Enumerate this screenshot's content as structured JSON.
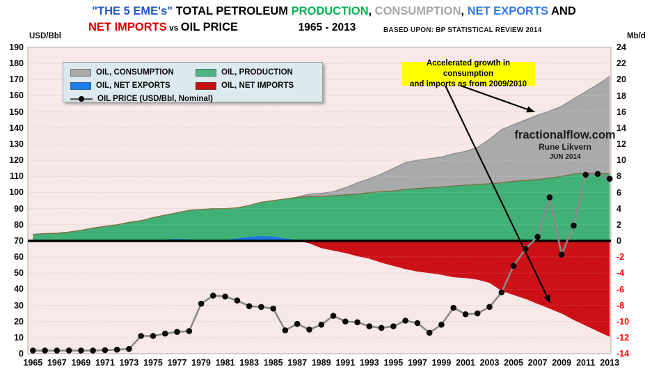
{
  "title": {
    "line1_segments": [
      {
        "text": "\"THE 5 EME's\" ",
        "color": "#2457C5"
      },
      {
        "text": "TOTAL PETROLEUM ",
        "color": "#000000"
      },
      {
        "text": "PRODUCTION",
        "color": "#00B050"
      },
      {
        "text": ", ",
        "color": "#000000"
      },
      {
        "text": "CONSUMPTION",
        "color": "#A6A6A6"
      },
      {
        "text": ", ",
        "color": "#000000"
      },
      {
        "text": "NET EXPORTS",
        "color": "#2F7BEA"
      },
      {
        "text": " AND",
        "color": "#000000"
      }
    ],
    "line2_segments": [
      {
        "text": "NET IMPORTS",
        "color": "#D50000"
      },
      {
        "text": " vs ",
        "color": "#000000",
        "small": true
      },
      {
        "text": "OIL PRICE",
        "color": "#000000"
      }
    ],
    "period": "1965 - 2013",
    "source": "BASED UPON: BP STATISTICAL REVIEW  2014"
  },
  "axes": {
    "left_unit": "USD/Bbl",
    "right_unit": "Mb/d",
    "left_ticks": [
      190,
      180,
      170,
      160,
      150,
      140,
      130,
      120,
      110,
      100,
      90,
      80,
      70,
      60,
      50,
      40,
      30,
      20,
      10,
      0
    ],
    "right_ticks": [
      24,
      22,
      20,
      18,
      16,
      14,
      12,
      10,
      8,
      6,
      4,
      2,
      0,
      -2,
      -4,
      -6,
      -8,
      -10,
      -12,
      -14
    ],
    "x_ticks": [
      1965,
      1967,
      1969,
      1971,
      1973,
      1975,
      1977,
      1979,
      1981,
      1983,
      1985,
      1987,
      1989,
      1991,
      1993,
      1995,
      1997,
      1999,
      2001,
      2003,
      2005,
      2007,
      2009,
      2011,
      2013
    ]
  },
  "legend": {
    "items": [
      {
        "label": "OIL, CONSUMPTION",
        "swatch": "#ABABAB",
        "type": "area",
        "key": "consumption"
      },
      {
        "label": "OIL, PRODUCTION",
        "swatch": "#4CB583",
        "type": "area",
        "key": "production"
      },
      {
        "label": "OIL, NET EXPORTS",
        "swatch": "#1F7FE8",
        "type": "area",
        "key": "net-exports"
      },
      {
        "label": "OIL, NET IMPORTS",
        "swatch": "#C50F0F",
        "type": "area",
        "key": "net-imports"
      },
      {
        "label": "OIL PRICE (USD/Bbl, Nominal)",
        "swatch": "#000000",
        "type": "line",
        "key": "oil-price"
      }
    ]
  },
  "annotation": {
    "line1": "Accelerated growth in consumption",
    "line2": "and imports as from 2009/2010",
    "bg": "#FFFF00"
  },
  "watermark": {
    "site": "fractionalflow.com",
    "author": "Rune Likvern",
    "date": "JUN 2014"
  },
  "chart_data": {
    "type": "combo-area-line",
    "plot_bg": "#F8E8E8",
    "grid": "on",
    "legend_position": "top-left-inside",
    "x_range": [
      1965,
      2013
    ],
    "left_axis": {
      "label": "USD/Bbl",
      "min": 0,
      "max": 190,
      "step": 10
    },
    "right_axis": {
      "label": "Mb/d",
      "min": -14,
      "max": 24,
      "step": 2
    },
    "x": [
      1965,
      1966,
      1967,
      1968,
      1969,
      1970,
      1971,
      1972,
      1973,
      1974,
      1975,
      1976,
      1977,
      1978,
      1979,
      1980,
      1981,
      1982,
      1983,
      1984,
      1985,
      1986,
      1987,
      1988,
      1989,
      1990,
      1991,
      1992,
      1993,
      1994,
      1995,
      1996,
      1997,
      1998,
      1999,
      2000,
      2001,
      2002,
      2003,
      2004,
      2005,
      2006,
      2007,
      2008,
      2009,
      2010,
      2011,
      2012,
      2013
    ],
    "series": [
      {
        "name": "OIL, CONSUMPTION",
        "type": "area",
        "axis": "right",
        "unit": "Mb/d",
        "color": "#A9AAAC",
        "edge": "#8D8D8D",
        "values": [
          0.8,
          0.9,
          0.95,
          1.1,
          1.3,
          1.6,
          1.8,
          2.0,
          2.3,
          2.5,
          2.85,
          3.05,
          3.25,
          3.6,
          3.85,
          4.0,
          3.9,
          3.8,
          3.9,
          4.2,
          4.45,
          4.9,
          5.45,
          5.8,
          5.9,
          6.1,
          6.6,
          7.2,
          7.7,
          8.3,
          9.0,
          9.7,
          10.0,
          10.2,
          10.4,
          10.8,
          11.1,
          11.6,
          12.6,
          13.8,
          14.4,
          15.0,
          15.6,
          16.1,
          16.7,
          17.6,
          18.5,
          19.4,
          20.4
        ]
      },
      {
        "name": "OIL, PRODUCTION",
        "type": "area",
        "axis": "right",
        "unit": "Mb/d",
        "color": "#41B077",
        "edge": "#7B6F42",
        "values": [
          0.8,
          0.9,
          0.95,
          1.1,
          1.3,
          1.6,
          1.8,
          2.0,
          2.3,
          2.5,
          2.9,
          3.2,
          3.5,
          3.8,
          3.9,
          4.0,
          4.0,
          4.1,
          4.4,
          4.8,
          5.0,
          5.2,
          5.4,
          5.5,
          5.5,
          5.6,
          5.7,
          5.8,
          6.0,
          6.1,
          6.2,
          6.4,
          6.5,
          6.6,
          6.7,
          6.8,
          6.9,
          7.0,
          7.1,
          7.2,
          7.4,
          7.5,
          7.6,
          7.8,
          8.0,
          8.3,
          8.4,
          8.4,
          8.3
        ]
      },
      {
        "name": "OIL, NET EXPORTS",
        "type": "area",
        "axis": "right",
        "unit": "Mb/d",
        "color": "#1E78E8",
        "values": [
          0,
          0,
          0,
          0,
          0,
          0,
          0,
          0,
          0,
          0,
          0.05,
          0.15,
          0.25,
          0.2,
          0.05,
          0,
          0.1,
          0.3,
          0.5,
          0.6,
          0.55,
          0.3,
          0.1,
          0,
          0,
          0,
          0,
          0,
          0,
          0,
          0,
          0,
          0,
          0,
          0,
          0,
          0,
          0,
          0,
          0,
          0,
          0,
          0,
          0,
          0,
          0,
          0,
          0,
          0
        ]
      },
      {
        "name": "OIL, NET IMPORTS",
        "type": "area",
        "axis": "right",
        "unit": "Mb/d",
        "color": "#CB1016",
        "values": [
          0,
          0,
          0,
          0,
          0,
          0,
          0,
          0,
          0,
          0,
          0,
          0,
          0,
          0,
          0,
          0,
          0,
          0,
          0,
          0,
          0,
          0,
          0,
          -0.3,
          -0.9,
          -1.2,
          -1.5,
          -1.9,
          -2.2,
          -2.7,
          -3.1,
          -3.5,
          -3.8,
          -4.0,
          -4.2,
          -4.5,
          -4.6,
          -4.8,
          -5.2,
          -6.2,
          -6.7,
          -7.2,
          -7.8,
          -8.4,
          -9.0,
          -9.8,
          -10.5,
          -11.2,
          -11.9
        ]
      },
      {
        "name": "OIL PRICE (USD/Bbl, Nominal)",
        "type": "line",
        "axis": "left",
        "unit": "USD/Bbl",
        "color": "#0B0B0B",
        "line_color": "#8A8A8A",
        "values": [
          2,
          2,
          2,
          2,
          2,
          2,
          2.2,
          2.5,
          3,
          11,
          11,
          12.5,
          13.5,
          14,
          31,
          36,
          35.5,
          33,
          29.5,
          29,
          28,
          14.5,
          18.5,
          15,
          18,
          23.5,
          20,
          19.5,
          17,
          16,
          17,
          20.5,
          19,
          13,
          18,
          28.5,
          24.5,
          25,
          29,
          38,
          54.5,
          65,
          72.5,
          97,
          61.5,
          79.5,
          111,
          111.5,
          108.5
        ]
      }
    ]
  }
}
